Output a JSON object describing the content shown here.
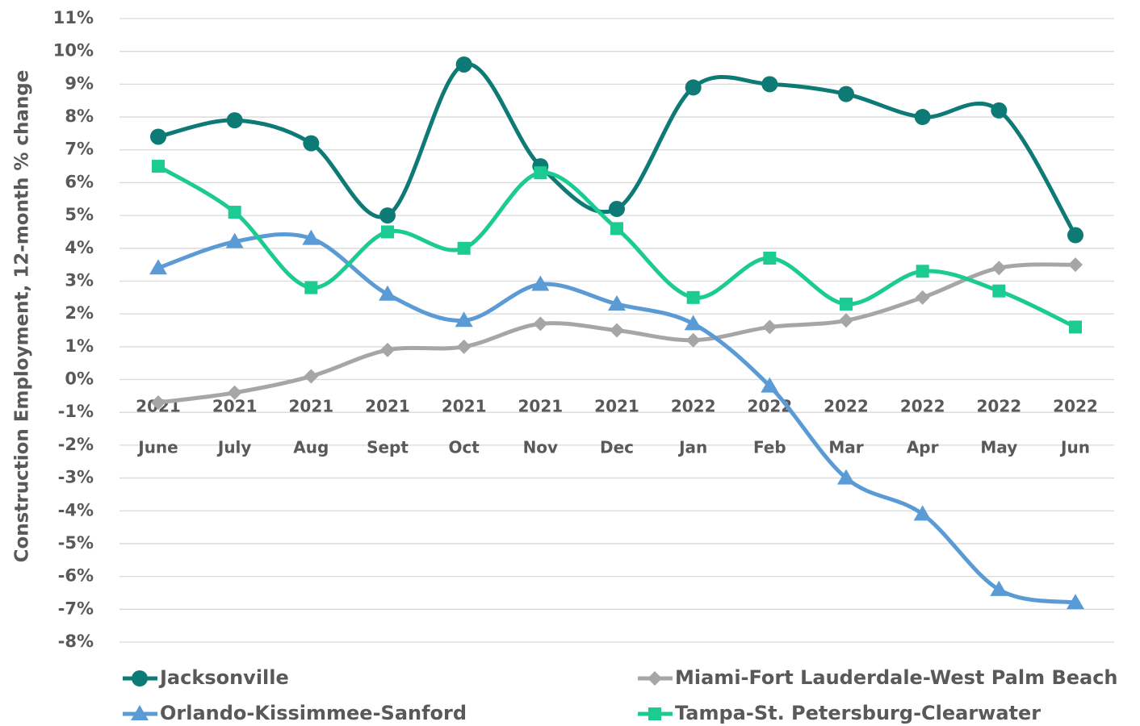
{
  "chart_data": {
    "type": "line",
    "smooth": true,
    "grid": true,
    "legend": "bottom",
    "ylabel": "Construction Employment, 12-month % change",
    "categories": [
      "June",
      "July",
      "Aug",
      "Sept",
      "Oct",
      "Nov",
      "Dec",
      "Jan",
      "Feb",
      "Mar",
      "Apr",
      "May",
      "Jun"
    ],
    "category_years": [
      "2021",
      "2021",
      "2021",
      "2021",
      "2021",
      "2021",
      "2021",
      "2022",
      "2022",
      "2022",
      "2022",
      "2022",
      "2022"
    ],
    "ylim": [
      -8,
      11
    ],
    "yticks": [
      {
        "value": -8,
        "label": "-8%"
      },
      {
        "value": -7,
        "label": "-7%"
      },
      {
        "value": -6,
        "label": "-6%"
      },
      {
        "value": -5,
        "label": "-5%"
      },
      {
        "value": -4,
        "label": "-4%"
      },
      {
        "value": -3,
        "label": "-3%"
      },
      {
        "value": -2,
        "label": "-2%"
      },
      {
        "value": -1,
        "label": "-1%"
      },
      {
        "value": 0,
        "label": "0%"
      },
      {
        "value": 1,
        "label": "1%"
      },
      {
        "value": 2,
        "label": "2%"
      },
      {
        "value": 3,
        "label": "3%"
      },
      {
        "value": 4,
        "label": "4%"
      },
      {
        "value": 5,
        "label": "5%"
      },
      {
        "value": 6,
        "label": "6%"
      },
      {
        "value": 7,
        "label": "7%"
      },
      {
        "value": 8,
        "label": "8%"
      },
      {
        "value": 9,
        "label": "9%"
      },
      {
        "value": 10,
        "label": "10%"
      },
      {
        "value": 11,
        "label": "11%"
      }
    ],
    "series": [
      {
        "name": "Jacksonville",
        "color": "#0e7a76",
        "marker": "circle",
        "values": [
          7.4,
          7.9,
          7.2,
          5.0,
          9.6,
          6.5,
          5.2,
          8.9,
          9.0,
          8.7,
          8.0,
          8.2,
          4.4
        ]
      },
      {
        "name": "Miami-Fort Lauderdale-West Palm Beach",
        "color": "#a6a6a6",
        "marker": "diamond",
        "values": [
          -0.7,
          -0.4,
          0.1,
          0.9,
          1.0,
          1.7,
          1.5,
          1.2,
          1.6,
          1.8,
          2.5,
          3.4,
          3.5
        ]
      },
      {
        "name": "Orlando-Kissimmee-Sanford",
        "color": "#5b9bd5",
        "marker": "triangle",
        "values": [
          3.4,
          4.2,
          4.3,
          2.6,
          1.8,
          2.9,
          2.3,
          1.7,
          -0.2,
          -3.0,
          -4.1,
          -6.4,
          -6.8
        ]
      },
      {
        "name": "Tampa-St. Petersburg-Clearwater",
        "color": "#1ccb92",
        "marker": "square",
        "values": [
          6.5,
          5.1,
          2.8,
          4.5,
          4.0,
          6.3,
          4.6,
          2.5,
          3.7,
          2.3,
          3.3,
          2.7,
          1.6
        ]
      }
    ]
  }
}
